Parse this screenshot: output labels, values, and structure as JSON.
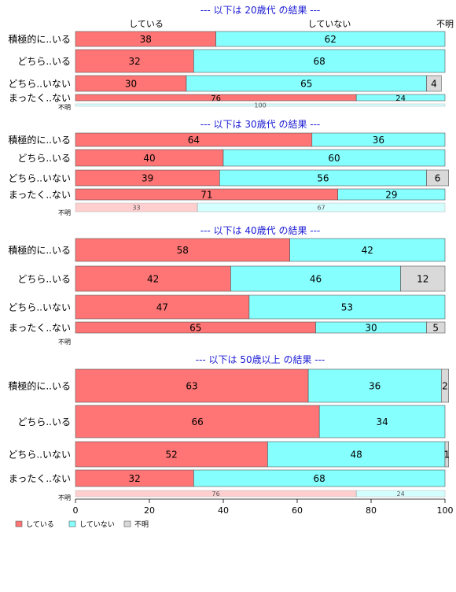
{
  "colors": {
    "している": "#ff7474",
    "していない": "#86ffff",
    "不明": "#d9d9d9",
    "title": "#1a1ad4"
  },
  "legend": {
    "items": [
      "している",
      "していない",
      "不明"
    ]
  },
  "column_headers": [
    "している",
    "していない",
    "不明"
  ],
  "x_ticks": [
    "0",
    "20",
    "40",
    "60",
    "80",
    "100"
  ],
  "chart_data": [
    {
      "type": "bar",
      "orientation": "horizontal",
      "stacked": true,
      "title": "--- 以下は 20歳代 の結果 ---",
      "categories": [
        "積極的に..いる",
        "どちら..いる",
        "どちら..いない",
        "まったく..ない",
        "不明"
      ],
      "series": [
        {
          "name": "している",
          "values": [
            38,
            32,
            30,
            76,
            0
          ]
        },
        {
          "name": "していない",
          "values": [
            62,
            68,
            65,
            24,
            100
          ]
        },
        {
          "name": "不明",
          "values": [
            0,
            0,
            4,
            0,
            0
          ]
        }
      ],
      "xlim": [
        0,
        100
      ]
    },
    {
      "type": "bar",
      "orientation": "horizontal",
      "stacked": true,
      "title": "--- 以下は 30歳代 の結果 ---",
      "categories": [
        "積極的に..いる",
        "どちら..いる",
        "どちら..いない",
        "まったく..ない",
        "不明"
      ],
      "series": [
        {
          "name": "している",
          "values": [
            64,
            40,
            39,
            71,
            33
          ]
        },
        {
          "name": "していない",
          "values": [
            36,
            60,
            56,
            29,
            67
          ]
        },
        {
          "name": "不明",
          "values": [
            0,
            0,
            6,
            0,
            0
          ]
        }
      ],
      "xlim": [
        0,
        100
      ]
    },
    {
      "type": "bar",
      "orientation": "horizontal",
      "stacked": true,
      "title": "--- 以下は 40歳代 の結果 ---",
      "categories": [
        "積極的に..いる",
        "どちら..いる",
        "どちら..いない",
        "まったく..ない",
        "不明"
      ],
      "series": [
        {
          "name": "している",
          "values": [
            58,
            42,
            47,
            65,
            0
          ]
        },
        {
          "name": "していない",
          "values": [
            42,
            46,
            53,
            30,
            0
          ]
        },
        {
          "name": "不明",
          "values": [
            0,
            12,
            0,
            5,
            0
          ]
        }
      ],
      "xlim": [
        0,
        100
      ]
    },
    {
      "type": "bar",
      "orientation": "horizontal",
      "stacked": true,
      "title": "--- 以下は 50歳以上 の結果 ---",
      "categories": [
        "積極的に..いる",
        "どちら..いる",
        "どちら..いない",
        "まったく..ない",
        "不明"
      ],
      "series": [
        {
          "name": "している",
          "values": [
            63,
            66,
            52,
            32,
            76
          ]
        },
        {
          "name": "していない",
          "values": [
            36,
            34,
            48,
            68,
            24
          ]
        },
        {
          "name": "不明",
          "values": [
            2,
            0,
            1,
            0,
            0
          ]
        }
      ],
      "xlim": [
        0,
        100
      ]
    }
  ]
}
